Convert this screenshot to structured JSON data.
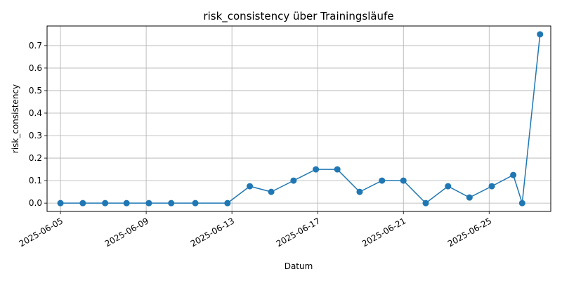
{
  "chart_data": {
    "type": "line",
    "title": "risk_consistency über Trainingsläufe",
    "xlabel": "Datum",
    "ylabel": "risk_consistency",
    "x_ticks": [
      "2025-06-05",
      "2025-06-09",
      "2025-06-13",
      "2025-06-17",
      "2025-06-21",
      "2025-06-25"
    ],
    "y_ticks": [
      "0.0",
      "0.1",
      "0.2",
      "0.3",
      "0.4",
      "0.5",
      "0.6",
      "0.7"
    ],
    "xlim": [
      "2025-06-04T09:00",
      "2025-06-27T21:00"
    ],
    "ylim": [
      -0.037,
      0.787
    ],
    "grid": true,
    "color": "#1f77b4",
    "marker": "circle",
    "series": [
      {
        "x": [
          "2025-06-05T00:00",
          "2025-06-06T01:00",
          "2025-06-07T02:00",
          "2025-06-08T02:00",
          "2025-06-09T03:00",
          "2025-06-10T04:00",
          "2025-06-11T07:00",
          "2025-06-12T19:00",
          "2025-06-13T20:00",
          "2025-06-14T20:00",
          "2025-06-15T21:00",
          "2025-06-16T22:00",
          "2025-06-17T22:00",
          "2025-06-18T23:00",
          "2025-06-20T00:00",
          "2025-06-21T00:00",
          "2025-06-22T01:00",
          "2025-06-23T02:00",
          "2025-06-24T02:00",
          "2025-06-25T03:00",
          "2025-06-26T03:00",
          "2025-06-26T13:00",
          "2025-06-27T09:00"
        ],
        "values": [
          0.0,
          0.0,
          0.0,
          0.0,
          0.0,
          0.0,
          0.0,
          0.0,
          0.075,
          0.05,
          0.1,
          0.15,
          0.15,
          0.05,
          0.1,
          0.1,
          0.0,
          0.075,
          0.025,
          0.075,
          0.125,
          0.0,
          0.75
        ]
      }
    ]
  }
}
